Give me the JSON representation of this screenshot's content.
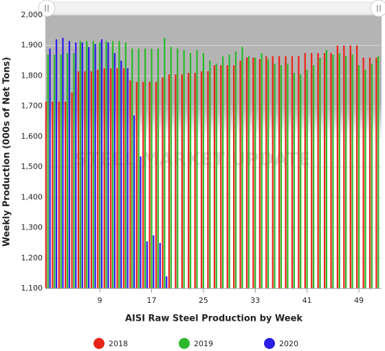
{
  "chart_data": {
    "type": "bar",
    "watermark": "STEEL MARKET UPDATE",
    "x_label": "AISI Raw Steel Production by Week",
    "y_label": "Weekly Production (000s of Net Tons)",
    "x": [
      1,
      2,
      3,
      4,
      5,
      6,
      7,
      8,
      9,
      10,
      11,
      12,
      13,
      14,
      15,
      16,
      17,
      18,
      19,
      20,
      21,
      22,
      23,
      24,
      25,
      26,
      27,
      28,
      29,
      30,
      31,
      32,
      33,
      34,
      35,
      36,
      37,
      38,
      39,
      40,
      41,
      42,
      43,
      44,
      45,
      46,
      47,
      48,
      49,
      50,
      51,
      52
    ],
    "series": [
      {
        "name": "2018",
        "color": "#e8251a",
        "values": [
          1715,
          1715,
          1715,
          1715,
          1745,
          1815,
          1815,
          1815,
          1820,
          1825,
          1825,
          1825,
          1825,
          1785,
          1780,
          1780,
          1780,
          1780,
          1795,
          1805,
          1805,
          1805,
          1810,
          1810,
          1815,
          1815,
          1835,
          1835,
          1835,
          1835,
          1850,
          1860,
          1860,
          1855,
          1865,
          1865,
          1865,
          1865,
          1865,
          1865,
          1875,
          1875,
          1875,
          1875,
          1875,
          1900,
          1900,
          1900,
          1900,
          1860,
          1860,
          1860
        ]
      },
      {
        "name": "2019",
        "color": "#2db82d",
        "values": [
          1870,
          1870,
          1870,
          1875,
          1875,
          1915,
          1915,
          1915,
          1910,
          1915,
          1915,
          1915,
          1910,
          1890,
          1890,
          1890,
          1890,
          1890,
          1925,
          1895,
          1890,
          1885,
          1875,
          1885,
          1875,
          1850,
          1840,
          1865,
          1870,
          1880,
          1895,
          1865,
          1860,
          1875,
          1855,
          1840,
          1835,
          1840,
          1810,
          1805,
          1820,
          1835,
          1860,
          1885,
          1870,
          1875,
          1865,
          1870,
          1835,
          1820,
          1840,
          1865
        ]
      },
      {
        "name": "2020",
        "color": "#2a1ee8",
        "values": [
          1890,
          1920,
          1925,
          1915,
          1910,
          1910,
          1895,
          1905,
          1920,
          1910,
          1875,
          1850,
          1825,
          1670,
          1535,
          1255,
          1275,
          1250,
          1140,
          null,
          null,
          null,
          null,
          null,
          null,
          null,
          null,
          null,
          null,
          null,
          null,
          null,
          null,
          null,
          null,
          null,
          null,
          null,
          null,
          null,
          null,
          null,
          null,
          null,
          null,
          null,
          null,
          null,
          null,
          null,
          null,
          null
        ]
      }
    ],
    "xlim": [
      0.6,
      52.5
    ],
    "xticks": [
      9,
      17,
      25,
      33,
      41,
      49
    ],
    "ylim": [
      1100,
      2000
    ],
    "yticks": [
      {
        "value": 1100,
        "label": "1,100"
      },
      {
        "value": 1200,
        "label": "1,200"
      },
      {
        "value": 1300,
        "label": "1,300"
      },
      {
        "value": 1400,
        "label": "1,400"
      },
      {
        "value": 1500,
        "label": "1,500"
      },
      {
        "value": 1600,
        "label": "1,600"
      },
      {
        "value": 1700,
        "label": "1,700"
      },
      {
        "value": 1800,
        "label": "1,800"
      },
      {
        "value": 1900,
        "label": "1,900"
      },
      {
        "value": 2000,
        "label": "2,000"
      }
    ],
    "grid": true,
    "legend": "bottom"
  }
}
